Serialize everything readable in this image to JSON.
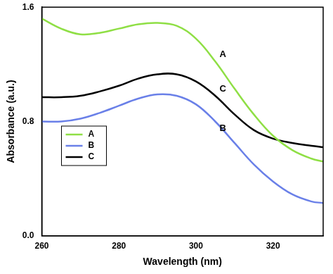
{
  "chart_data": {
    "type": "line",
    "x_label": "Wavelength (nm)",
    "y_label": "Absorbance (a.u.)",
    "x": [
      260,
      265,
      270,
      275,
      280,
      285,
      290,
      295,
      300,
      305,
      310,
      315,
      320,
      325,
      330,
      333
    ],
    "series": [
      {
        "name": "A",
        "color": "#8fdf45",
        "values": [
          1.52,
          1.45,
          1.41,
          1.42,
          1.45,
          1.48,
          1.49,
          1.47,
          1.38,
          1.22,
          1.03,
          0.85,
          0.7,
          0.6,
          0.54,
          0.52
        ]
      },
      {
        "name": "B",
        "color": "#6a80e8",
        "values": [
          0.8,
          0.8,
          0.82,
          0.86,
          0.91,
          0.96,
          0.99,
          0.98,
          0.92,
          0.8,
          0.65,
          0.5,
          0.38,
          0.29,
          0.24,
          0.23
        ]
      },
      {
        "name": "C",
        "color": "#000000",
        "values": [
          0.97,
          0.97,
          0.98,
          1.01,
          1.05,
          1.1,
          1.13,
          1.13,
          1.08,
          0.98,
          0.85,
          0.74,
          0.68,
          0.65,
          0.63,
          0.62
        ]
      }
    ],
    "xlim": [
      260,
      333
    ],
    "xticks": [
      260,
      280,
      300,
      320
    ],
    "ylim": [
      0,
      1.6
    ],
    "yticks": [
      {
        "value": 0,
        "label": "0.0"
      },
      0.8,
      {
        "value": 1.6,
        "label": "1.6"
      }
    ],
    "grid": false,
    "legend": "left"
  }
}
